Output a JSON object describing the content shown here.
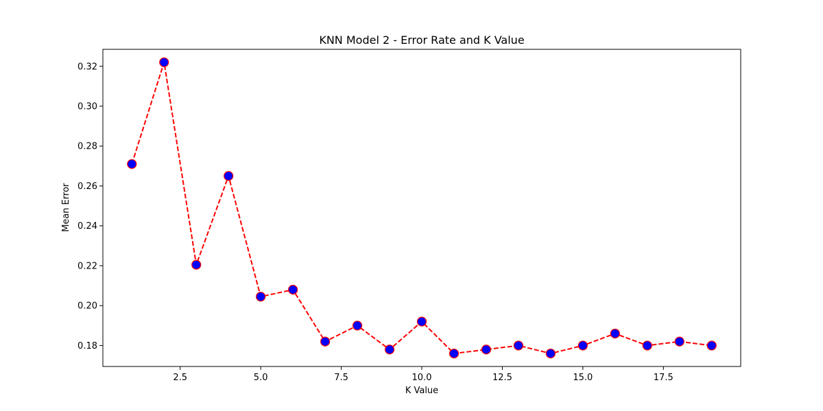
{
  "chart_data": {
    "type": "line",
    "title": "KNN Model 2 - Error Rate and K Value",
    "xlabel": "K Value",
    "ylabel": "Mean Error",
    "xlim": [
      0.1,
      19.9
    ],
    "ylim": [
      0.1695,
      0.3285
    ],
    "xticks": [
      2.5,
      5.0,
      7.5,
      10.0,
      12.5,
      15.0,
      17.5
    ],
    "xtick_labels": [
      "2.5",
      "5.0",
      "7.5",
      "10.0",
      "12.5",
      "15.0",
      "17.5"
    ],
    "yticks": [
      0.18,
      0.2,
      0.22,
      0.24,
      0.26,
      0.28,
      0.3,
      0.32
    ],
    "ytick_labels": [
      "0.18",
      "0.20",
      "0.22",
      "0.24",
      "0.26",
      "0.28",
      "0.30",
      "0.32"
    ],
    "grid": false,
    "series": [
      {
        "name": "Mean Error",
        "line_color": "#ff0000",
        "line_style": "dashed",
        "marker": "circle",
        "marker_face_color": "#0000ff",
        "marker_edge_color": "#ff0000",
        "x": [
          1,
          2,
          3,
          4,
          5,
          6,
          7,
          8,
          9,
          10,
          11,
          12,
          13,
          14,
          15,
          16,
          17,
          18,
          19
        ],
        "values": [
          0.271,
          0.322,
          0.2205,
          0.265,
          0.2045,
          0.208,
          0.182,
          0.19,
          0.178,
          0.192,
          0.176,
          0.178,
          0.18,
          0.176,
          0.18,
          0.186,
          0.18,
          0.182,
          0.18
        ]
      }
    ]
  }
}
